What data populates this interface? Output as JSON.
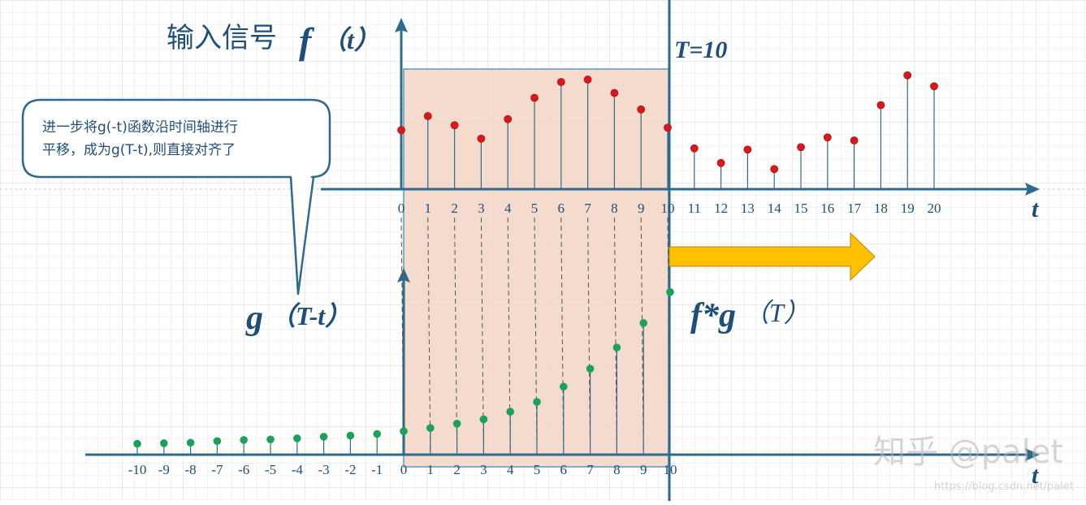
{
  "colors": {
    "axis": "#2e6a8e",
    "text": "#1f4e79",
    "f_point": "#d7191c",
    "g_point": "#1aa15a",
    "window_fill": "#f2d5c4",
    "window_border": "#5f9ab8",
    "arrow": "#ffc000",
    "arrow_border": "#b8860b"
  },
  "labels": {
    "input_title_cn": "输入信号",
    "input_title_f": "f",
    "input_title_t": "（t）",
    "T_label": "T=10",
    "g_label_g": "g",
    "g_label_rest": "（T-t）",
    "fg_label_fg": "f*g",
    "fg_label_rest": "（T）",
    "t_axis_top": "t",
    "t_axis_bottom": "t"
  },
  "callout": {
    "line1": "进一步将g(-t)函数沿时间轴进行",
    "line2": "平移，成为g(T-t),则直接对齐了"
  },
  "watermark": {
    "main": "知乎 @palet",
    "url": "https://blog.csdn.net/palet"
  },
  "top_ticks": [
    "0",
    "1",
    "2",
    "3",
    "4",
    "5",
    "6",
    "7",
    "8",
    "9",
    "10",
    "11",
    "12",
    "13",
    "14",
    "15",
    "16",
    "17",
    "18",
    "19",
    "20"
  ],
  "bottom_ticks": [
    "-10",
    "-9",
    "-8",
    "-7",
    "-6",
    "-5",
    "-4",
    "-3",
    "-2",
    "-1",
    "0",
    "1",
    "2",
    "3",
    "4",
    "5",
    "6",
    "7",
    "8",
    "9",
    "10"
  ],
  "chart_data": [
    {
      "type": "scatter",
      "x": [
        0,
        1,
        2,
        3,
        4,
        5,
        6,
        7,
        8,
        9,
        10,
        11,
        12,
        13,
        14,
        15,
        16,
        17,
        18,
        19,
        20
      ],
      "y": [
        0.97,
        1.2,
        1.05,
        0.83,
        1.15,
        1.5,
        1.76,
        1.8,
        1.58,
        1.31,
        1.01,
        0.67,
        0.43,
        0.65,
        0.33,
        0.69,
        0.85,
        0.8,
        1.38,
        1.87,
        1.69
      ],
      "xlabel": "t",
      "ylabel": "",
      "title": "输入信号 f（t）"
    },
    {
      "type": "scatter",
      "x": [
        -10,
        -9,
        -8,
        -7,
        -6,
        -5,
        -4,
        -3,
        -2,
        -1,
        0,
        1,
        2,
        3,
        4,
        5,
        6,
        7,
        8,
        9,
        10
      ],
      "y": [
        0.2,
        0.21,
        0.22,
        0.25,
        0.27,
        0.28,
        0.3,
        0.33,
        0.35,
        0.38,
        0.43,
        0.49,
        0.57,
        0.65,
        0.79,
        0.97,
        1.25,
        1.58,
        1.97,
        2.42,
        2.99
      ],
      "xlabel": "t",
      "ylabel": "",
      "title": "g（T-t）"
    }
  ]
}
